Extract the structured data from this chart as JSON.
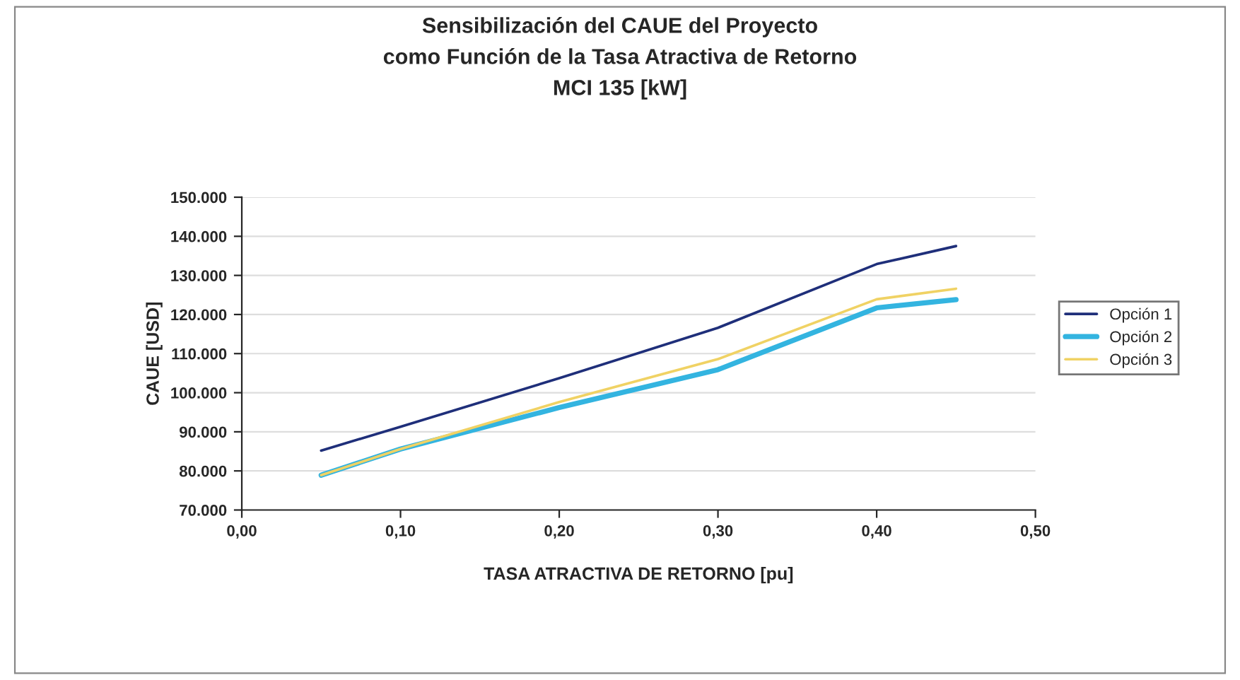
{
  "chart_data": {
    "type": "line",
    "title": "Sensibilización del CAUE del Proyecto\ncomo Función de la Tasa Atractiva de Retorno\nMCI 135 [kW]",
    "xlabel": "TASA ATRACTIVA DE RETORNO [pu]",
    "ylabel": "CAUE [USD]",
    "x": [
      0.05,
      0.1,
      0.2,
      0.3,
      0.4,
      0.45
    ],
    "series": [
      {
        "name": "Opción 1",
        "color": "#1f2f7a",
        "values": [
          85200,
          91300,
          103700,
          116600,
          132900,
          137500
        ]
      },
      {
        "name": "Opción 2",
        "color": "#33b4e0",
        "values": [
          78900,
          85600,
          96200,
          105900,
          121700,
          123800
        ]
      },
      {
        "name": "Opción 3",
        "color": "#f0d264",
        "values": [
          78900,
          85600,
          97600,
          108600,
          123900,
          126600
        ]
      }
    ],
    "xlim": [
      0,
      0.5
    ],
    "xticks": [
      {
        "value": 0,
        "label": "0,00"
      },
      {
        "value": 0.1,
        "label": "0,10"
      },
      {
        "value": 0.2,
        "label": "0,20"
      },
      {
        "value": 0.3,
        "label": "0,30"
      },
      {
        "value": 0.4,
        "label": "0,40"
      },
      {
        "value": 0.5,
        "label": "0,50"
      }
    ],
    "ylim": [
      70000,
      150000
    ],
    "yticks": [
      {
        "value": 70000,
        "label": "70.000"
      },
      {
        "value": 80000,
        "label": "80.000"
      },
      {
        "value": 90000,
        "label": "90.000"
      },
      {
        "value": 100000,
        "label": "100.000"
      },
      {
        "value": 110000,
        "label": "110.000"
      },
      {
        "value": 120000,
        "label": "120.000"
      },
      {
        "value": 130000,
        "label": "130.000"
      },
      {
        "value": 140000,
        "label": "140.000"
      },
      {
        "value": 150000,
        "label": "150.000"
      }
    ],
    "grid": "y",
    "legend": "right",
    "marker": "none",
    "line_style": "solid"
  }
}
